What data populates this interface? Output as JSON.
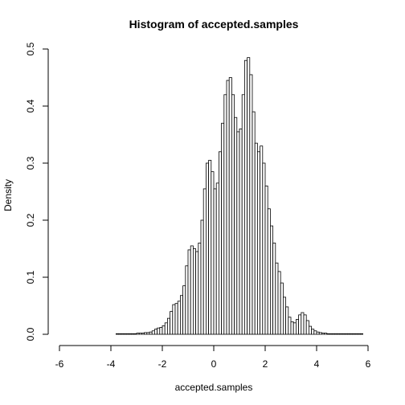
{
  "chart_data": {
    "type": "bar",
    "title": "Histogram of accepted.samples",
    "xlabel": "accepted.samples",
    "ylabel": "Density",
    "xlim": [
      -6,
      6
    ],
    "ylim": [
      0,
      0.5
    ],
    "xticks": [
      "-6",
      "-4",
      "-2",
      "0",
      "2",
      "4",
      "6"
    ],
    "xtick_values": [
      -6,
      -4,
      -2,
      0,
      2,
      4,
      6
    ],
    "yticks": [
      "0.0",
      "0.1",
      "0.2",
      "0.3",
      "0.4",
      "0.5"
    ],
    "ytick_values": [
      0.0,
      0.1,
      0.2,
      0.3,
      0.4,
      0.5
    ],
    "bin_width": 0.1,
    "bins_start": -3.8,
    "values": [
      0.001,
      0.001,
      0.001,
      0.001,
      0.001,
      0.001,
      0.001,
      0.001,
      0.002,
      0.002,
      0.002,
      0.003,
      0.003,
      0.004,
      0.006,
      0.009,
      0.011,
      0.012,
      0.015,
      0.02,
      0.028,
      0.04,
      0.052,
      0.054,
      0.058,
      0.068,
      0.085,
      0.12,
      0.148,
      0.155,
      0.15,
      0.145,
      0.16,
      0.2,
      0.255,
      0.3,
      0.305,
      0.285,
      0.255,
      0.265,
      0.32,
      0.37,
      0.42,
      0.445,
      0.45,
      0.42,
      0.38,
      0.355,
      0.36,
      0.42,
      0.48,
      0.485,
      0.455,
      0.39,
      0.335,
      0.32,
      0.33,
      0.3,
      0.26,
      0.22,
      0.19,
      0.16,
      0.125,
      0.11,
      0.09,
      0.065,
      0.048,
      0.03,
      0.022,
      0.02,
      0.026,
      0.034,
      0.038,
      0.034,
      0.024,
      0.014,
      0.009,
      0.006,
      0.004,
      0.003,
      0.002,
      0.002,
      0.001,
      0.001,
      0.001,
      0.001,
      0.001,
      0.001,
      0.001,
      0.001,
      0.001,
      0.001,
      0.001,
      0.001,
      0.001,
      0.001
    ]
  }
}
